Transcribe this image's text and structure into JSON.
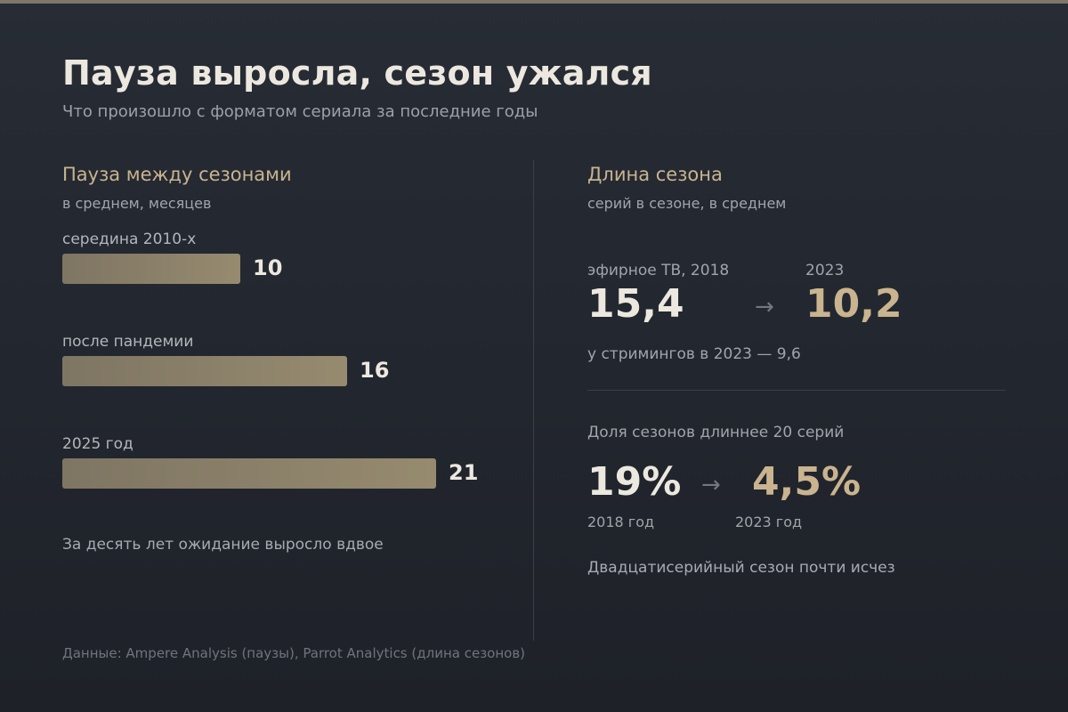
{
  "title": "Пауза выросла, сезон ужался",
  "subtitle": "Что произошло с форматом сериала за последние годы",
  "left_panel": {
    "title": "Пауза между сезонами",
    "subtitle": "в среднем, месяцев",
    "note": "За десять лет ожидание выросло вдвое"
  },
  "right_panel": {
    "title": "Длина сезона",
    "subtitle": "серий в сезоне, в среднем",
    "episodes": {
      "from_label": "эфирное ТВ, 2018",
      "to_label": "2023",
      "from_value": "15,4",
      "to_value": "10,2",
      "arrow": "→",
      "note": "у стримингов в 2023 — 9,6"
    },
    "share": {
      "label": "Доля сезонов длиннее 20 серий",
      "from_value": "19%",
      "to_value": "4,5%",
      "arrow": "→",
      "from_year": "2018 год",
      "to_year": "2023 год",
      "note": "Двадцатисерийный сезон почти исчез"
    }
  },
  "source": "Данные: Ampere Analysis (паузы), Parrot Analytics (длина сезонов)",
  "colors": {
    "accent": "#c9b48f",
    "bar": "#968b6f",
    "background": "#23272e"
  },
  "chart_data": [
    {
      "type": "bar",
      "title": "Пауза между сезонами",
      "subtitle": "в среднем, месяцев",
      "categories": [
        "середина 2010-х",
        "после пандемии",
        "2025 год"
      ],
      "values": [
        10,
        16,
        21
      ],
      "xlim": [
        0,
        21
      ]
    },
    {
      "type": "table",
      "title": "Длина сезона",
      "subtitle": "серий в сезоне, в среднем",
      "rows": [
        {
          "label": "эфирное ТВ, 2018",
          "value": 15.4
        },
        {
          "label": "2023",
          "value": 10.2
        },
        {
          "label": "у стримингов в 2023",
          "value": 9.6
        }
      ]
    },
    {
      "type": "table",
      "title": "Доля сезонов длиннее 20 серий",
      "rows": [
        {
          "label": "2018 год",
          "value": 19
        },
        {
          "label": "2023 год",
          "value": 4.5
        }
      ]
    }
  ]
}
